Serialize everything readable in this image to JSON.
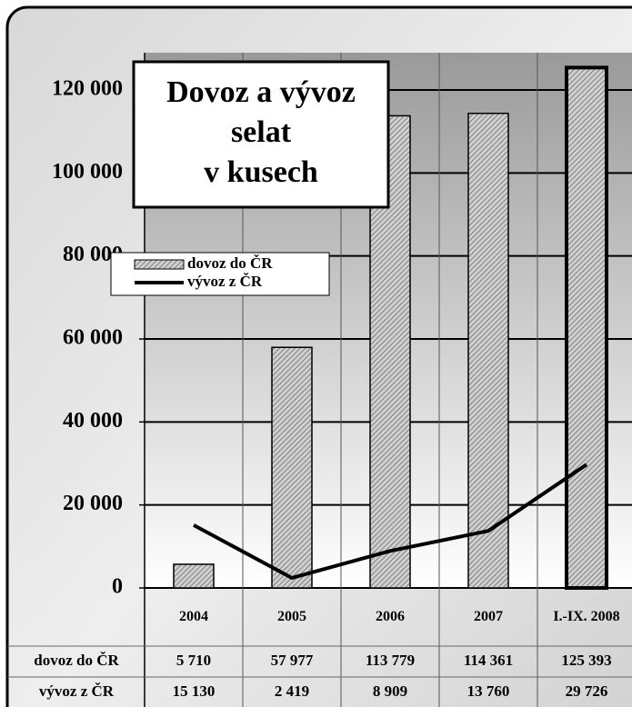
{
  "chart_data": {
    "type": "bar",
    "title": "Dovoz a vývoz\nselat\nv kusech",
    "categories": [
      "2004",
      "2005",
      "2006",
      "2007",
      "I.-IX. 2008"
    ],
    "series": [
      {
        "name": "dovoz do ČR",
        "type": "bar",
        "color": "#a8a8a8",
        "values": [
          5710,
          57977,
          113779,
          114361,
          125393
        ],
        "value_labels": [
          "5 710",
          "57 977",
          "113 779",
          "114 361",
          "125 393"
        ]
      },
      {
        "name": "vývoz  z ČR",
        "type": "line",
        "color": "#000000",
        "values": [
          15130,
          2419,
          8909,
          13760,
          29726
        ],
        "value_labels": [
          "15 130",
          "2 419",
          "8 909",
          "13 760",
          "29 726"
        ]
      }
    ],
    "ylim": [
      0,
      120000
    ],
    "yticks": [
      0,
      {
        "value": 20000,
        "label": "20 000"
      },
      {
        "value": 40000,
        "label": "40 000"
      },
      {
        "value": 60000,
        "label": "60 000"
      },
      {
        "value": 80000,
        "label": "80 000"
      },
      {
        "value": 100000,
        "label": "100 000"
      },
      {
        "value": 120000,
        "label": "120 000"
      }
    ],
    "grid": true
  }
}
